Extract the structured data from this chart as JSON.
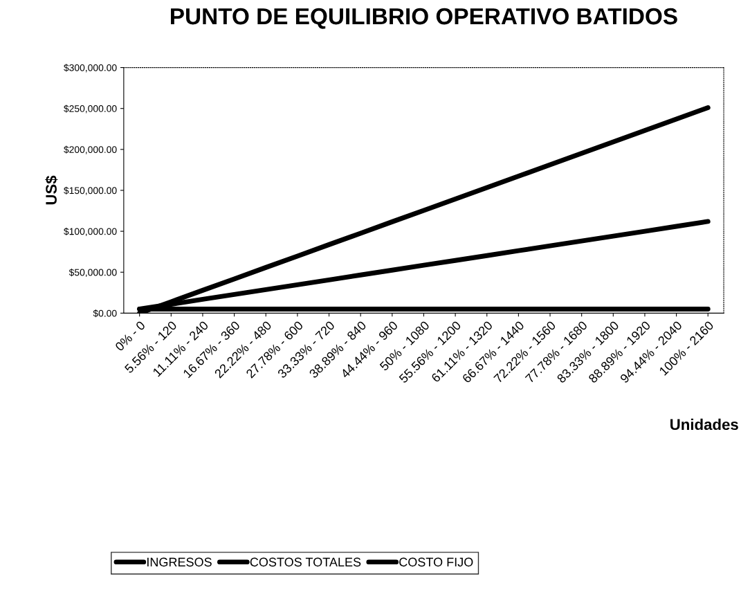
{
  "chart_data": {
    "type": "line",
    "title": "PUNTO DE EQUILIBRIO OPERATIVO BATIDOS",
    "xlabel": "Unidades",
    "ylabel": "US$",
    "categories": [
      "0% - 0",
      "5.56% - 120",
      "11.11% - 240",
      "16.67% - 360",
      "22.22% - 480",
      "27.78% - 600",
      "33.33% - 720",
      "38.89% - 840",
      "44.44% - 960",
      "50% - 1080",
      "55.56% - 1200",
      "61.11% - 1320",
      "66.67% - 1440",
      "72.22% - 1560",
      "77.78% - 1680",
      "83.33% - 1800",
      "88.89% - 1920",
      "94.44% - 2040",
      "100% - 2160"
    ],
    "series": [
      {
        "name": "INGRESOS",
        "color": "#000000",
        "values": [
          0,
          13900,
          27900,
          41800,
          55800,
          69700,
          83700,
          97600,
          111600,
          125500,
          139400,
          153400,
          167300,
          181300,
          195200,
          209200,
          223100,
          237100,
          251000
        ]
      },
      {
        "name": "COSTOS TOTALES",
        "color": "#000000",
        "values": [
          5000,
          10900,
          16900,
          22800,
          28800,
          34700,
          40600,
          46600,
          52500,
          58500,
          64400,
          70300,
          76300,
          82200,
          88200,
          94100,
          100000,
          106000,
          112000
        ]
      },
      {
        "name": "COSTO FIJO",
        "color": "#000000",
        "values": [
          5000,
          5000,
          5000,
          5000,
          5000,
          5000,
          5000,
          5000,
          5000,
          5000,
          5000,
          5000,
          5000,
          5000,
          5000,
          5000,
          5000,
          5000,
          5000
        ]
      }
    ],
    "ylim": [
      0,
      300000
    ],
    "yticks": [
      {
        "value": 0,
        "label": "$0.00"
      },
      {
        "value": 50000,
        "label": "$50,000.00"
      },
      {
        "value": 100000,
        "label": "$100,000.00"
      },
      {
        "value": 150000,
        "label": "$150,000.00"
      },
      {
        "value": 200000,
        "label": "$200,000.00"
      },
      {
        "value": 250000,
        "label": "$250,000.00"
      },
      {
        "value": 300000,
        "label": "$300,000.00"
      }
    ],
    "grid": false,
    "legend": "bottom",
    "marker": "none",
    "line_style": "solid"
  }
}
